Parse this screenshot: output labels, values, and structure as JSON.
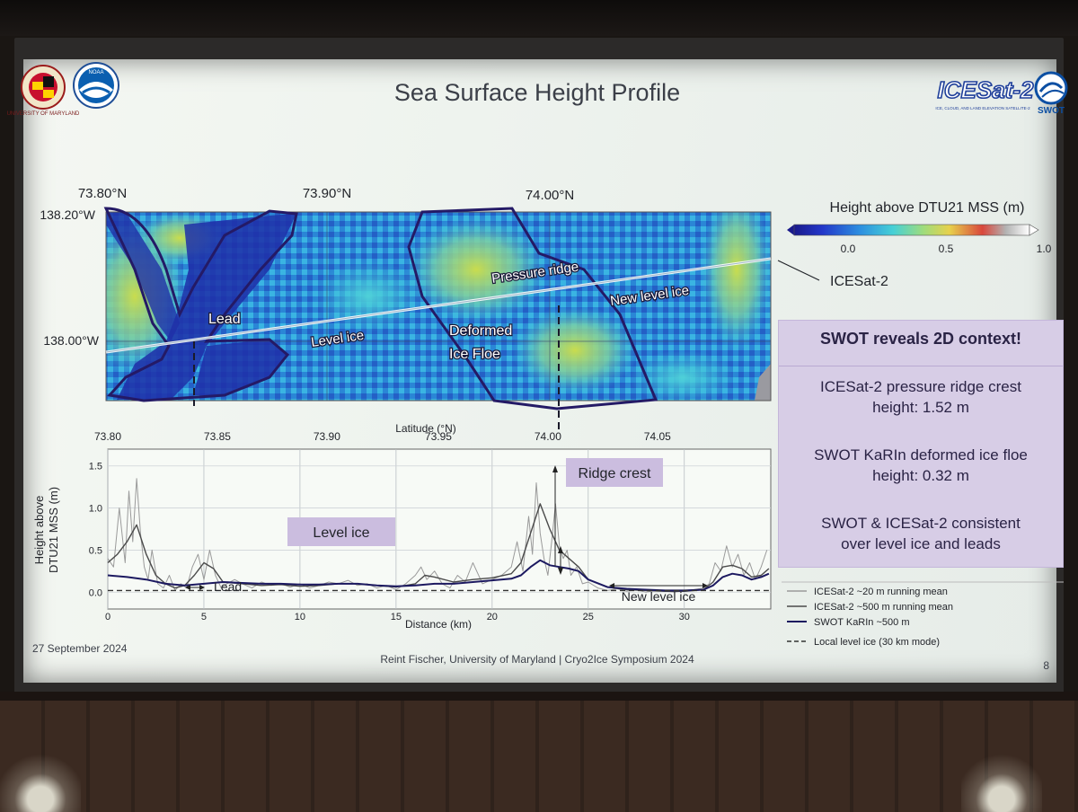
{
  "slide": {
    "title": "Sea Surface Height Profile",
    "date": "27 September 2024",
    "footer": "Reint Fischer, University of Maryland | Cryo2Ice Symposium 2024",
    "page_number": "8"
  },
  "logos": {
    "umd": {
      "icon": "umd-seal-icon",
      "text": "UNIVERSITY OF MARYLAND"
    },
    "noaa": {
      "icon": "noaa-logo-icon",
      "text": "NOAA"
    },
    "icesat": {
      "icon": "icesat2-logo-icon",
      "text": "ICESat-2",
      "tagline": "ICE, CLOUD, AND LAND ELEVATION SATELLITE-2"
    },
    "swot": {
      "icon": "swot-logo-icon",
      "text": "SWOT"
    }
  },
  "colors": {
    "slide_bg": "#eef3ee",
    "map_blue_dark": "#1e2fa8",
    "map_blue_mid": "#2a7fd3",
    "map_cyan": "#3ec6d8",
    "map_yellow": "#c7d84a",
    "outline": "#241a66",
    "panel_bg": "#d7cde6",
    "label_bg": "#cbbddf"
  },
  "map": {
    "lat_labels": [
      "73.80°N",
      "73.90°N",
      "74.00°N"
    ],
    "lon_labels": [
      "138.20°W",
      "138.00°W"
    ],
    "annotations": [
      "Lead",
      "Level ice",
      "Deformed",
      "Ice Floe",
      "Pressure ridge",
      "New level ice"
    ],
    "track_label": "ICESat-2",
    "colorbar": {
      "title": "Height above DTU21 MSS (m)",
      "ticks": [
        "0.0",
        "0.5",
        "1.0"
      ],
      "range": [
        0.0,
        1.0
      ],
      "colors": [
        "#1a1a8c",
        "#2337c9",
        "#2d8fe0",
        "#46d0d6",
        "#9fdc7c",
        "#e7d14c",
        "#d9473c",
        "#b3b3b3",
        "#ffffff"
      ]
    }
  },
  "chart_data": {
    "type": "line",
    "xlabel": "Distance (km)",
    "ylabel": "Height above DTU21 MSS (m)",
    "ylabel_lines": [
      "Height above",
      "DTU21 MSS (m)"
    ],
    "top_axis_label": "Latitude (°N)",
    "xlim": [
      0,
      34.5
    ],
    "ylim": [
      -0.2,
      1.7
    ],
    "x_ticks": [
      "0",
      "5",
      "10",
      "15",
      "20",
      "25",
      "30"
    ],
    "y_ticks": [
      "0.0",
      "0.5",
      "1.0",
      "1.5"
    ],
    "top_ticks": [
      {
        "label": "73.80",
        "km": 0
      },
      {
        "label": "73.85",
        "km": 5.7
      },
      {
        "label": "73.90",
        "km": 11.4
      },
      {
        "label": "73.95",
        "km": 17.2
      },
      {
        "label": "74.00",
        "km": 22.9
      },
      {
        "label": "74.05",
        "km": 28.6
      }
    ],
    "annotations": {
      "level_ice": "Level ice",
      "ridge_crest": "Ridge crest",
      "lead": "Lead",
      "new_level_ice": "New level ice"
    },
    "series": [
      {
        "name": "ICESat-2 ~20 m running mean",
        "color": "#9a9a9a",
        "x": [
          0,
          0.3,
          0.6,
          0.9,
          1.1,
          1.3,
          1.5,
          1.7,
          1.9,
          2.1,
          2.3,
          2.6,
          2.9,
          3.2,
          3.5,
          3.8,
          4.1,
          4.4,
          4.7,
          5.0,
          5.3,
          5.6,
          5.9,
          6.2,
          6.6,
          7.0,
          7.5,
          8,
          8.5,
          9,
          9.5,
          10,
          10.5,
          11,
          11.5,
          12,
          12.5,
          13,
          13.5,
          14,
          14.5,
          15,
          15.5,
          16,
          16.3,
          16.6,
          17,
          17.4,
          17.8,
          18.2,
          18.6,
          19,
          19.5,
          20,
          20.5,
          21,
          21.3,
          21.6,
          21.9,
          22.1,
          22.3,
          22.5,
          22.7,
          22.9,
          23.1,
          23.3,
          23.5,
          23.7,
          23.9,
          24.1,
          24.4,
          24.7,
          25,
          25.5,
          26,
          26.5,
          27,
          27.5,
          28,
          28.5,
          29,
          29.5,
          30,
          30.5,
          31,
          31.3,
          31.6,
          31.9,
          32.2,
          32.5,
          32.8,
          33.1,
          33.4,
          33.7,
          34,
          34.3
        ],
        "y": [
          0.4,
          0.3,
          1.0,
          0.35,
          1.2,
          0.6,
          1.35,
          0.7,
          0.3,
          0.15,
          0.5,
          0.1,
          0.05,
          0.2,
          0.02,
          0.1,
          0.05,
          0.3,
          0.45,
          0.15,
          0.5,
          0.2,
          0.05,
          0.1,
          0.15,
          0.1,
          0.05,
          0.12,
          0.08,
          0.1,
          0.06,
          0.1,
          0.05,
          0.08,
          0.12,
          0.1,
          0.14,
          0.08,
          0.1,
          0.05,
          0.08,
          0.03,
          0.1,
          0.2,
          0.3,
          0.15,
          0.25,
          0.1,
          0.05,
          0.2,
          0.12,
          0.35,
          0.1,
          0.15,
          0.2,
          0.3,
          0.6,
          0.25,
          0.9,
          0.45,
          1.3,
          0.7,
          0.4,
          0.2,
          0.6,
          1.05,
          0.55,
          0.4,
          0.5,
          0.2,
          0.3,
          0.1,
          0.12,
          0.05,
          0.02,
          0.04,
          0.01,
          0.03,
          0.0,
          0.02,
          0.01,
          0.0,
          0.02,
          0.03,
          0.05,
          0.1,
          0.35,
          0.25,
          0.55,
          0.3,
          0.45,
          0.2,
          0.35,
          0.15,
          0.3,
          0.5
        ]
      },
      {
        "name": "ICESat-2 ~500 m running mean",
        "color": "#4a4a4a",
        "x": [
          0,
          0.5,
          1,
          1.5,
          2,
          2.5,
          3,
          3.5,
          4,
          4.5,
          5,
          5.5,
          6,
          7,
          8,
          9,
          10,
          11,
          12,
          13,
          14,
          15,
          16,
          16.5,
          17,
          18,
          19,
          20,
          21,
          21.5,
          22,
          22.5,
          23,
          23.5,
          24,
          24.5,
          25,
          26,
          27,
          28,
          29,
          30,
          31,
          31.5,
          32,
          32.5,
          33,
          33.5,
          34,
          34.4
        ],
        "y": [
          0.35,
          0.45,
          0.6,
          0.8,
          0.45,
          0.2,
          0.1,
          0.05,
          0.08,
          0.2,
          0.35,
          0.28,
          0.12,
          0.1,
          0.08,
          0.09,
          0.07,
          0.08,
          0.1,
          0.1,
          0.08,
          0.06,
          0.1,
          0.2,
          0.18,
          0.12,
          0.15,
          0.17,
          0.22,
          0.35,
          0.7,
          1.05,
          0.75,
          0.5,
          0.4,
          0.3,
          0.15,
          0.06,
          0.03,
          0.02,
          0.01,
          0.01,
          0.03,
          0.12,
          0.3,
          0.32,
          0.28,
          0.18,
          0.2,
          0.28
        ]
      },
      {
        "name": "SWOT KaRIn ~500 m",
        "color": "#1c1960",
        "x": [
          0,
          1,
          2,
          3,
          4,
          5,
          6,
          7,
          8,
          9,
          10,
          11,
          12,
          13,
          14,
          15,
          16,
          17,
          18,
          19,
          20,
          21,
          21.5,
          22,
          22.5,
          23,
          23.5,
          24,
          24.5,
          25,
          26,
          27,
          28,
          29,
          30,
          31,
          31.5,
          32,
          32.5,
          33,
          33.5,
          34,
          34.4
        ],
        "y": [
          0.2,
          0.18,
          0.15,
          0.1,
          0.08,
          0.1,
          0.12,
          0.11,
          0.1,
          0.1,
          0.09,
          0.09,
          0.1,
          0.1,
          0.08,
          0.07,
          0.08,
          0.1,
          0.1,
          0.12,
          0.14,
          0.16,
          0.2,
          0.3,
          0.38,
          0.32,
          0.3,
          0.28,
          0.25,
          0.15,
          0.06,
          0.04,
          0.03,
          0.02,
          0.02,
          0.03,
          0.08,
          0.18,
          0.22,
          0.2,
          0.15,
          0.18,
          0.22
        ]
      },
      {
        "name": "Local level ice (30 km mode)",
        "color": "#333333",
        "style": "dashed",
        "x": [
          0,
          34.4
        ],
        "y": [
          0.02,
          0.02
        ]
      }
    ]
  },
  "panel": {
    "title": "SWOT reveals 2D context!",
    "items": [
      [
        "ICESat-2 pressure ridge crest",
        "height: 1.52 m"
      ],
      [
        "SWOT KaRIn deformed ice floe",
        "height: 0.32 m"
      ],
      [
        "SWOT & ICESat-2 consistent",
        "over level ice and leads"
      ]
    ]
  }
}
